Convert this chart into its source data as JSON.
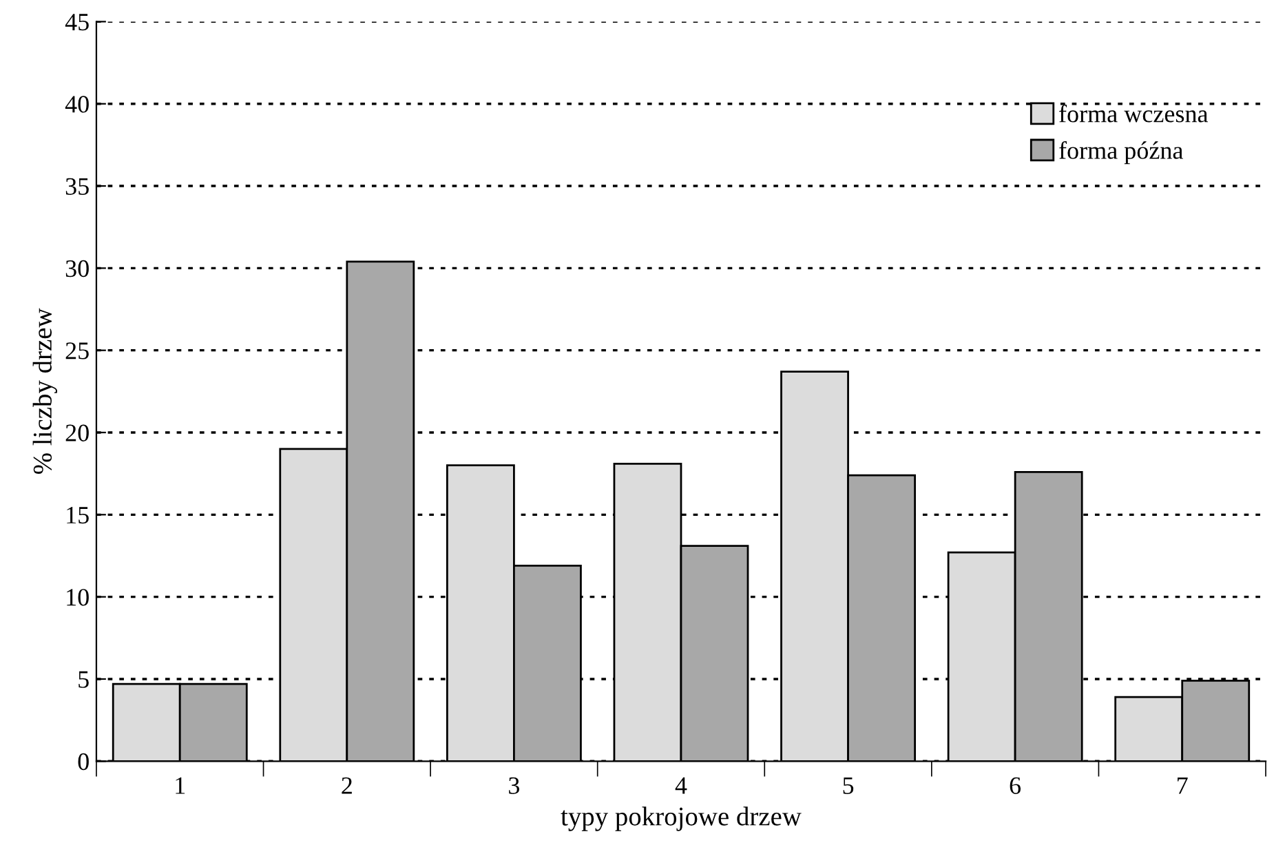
{
  "chart_data": {
    "type": "bar",
    "xlabel": "typy pokrojowe drzew",
    "ylabel": "% liczby drzew",
    "categories": [
      "1",
      "2",
      "3",
      "4",
      "5",
      "6",
      "7"
    ],
    "series": [
      {
        "name": "forma wczesna",
        "color": "#dcdcdc",
        "values": [
          4.7,
          19.0,
          18.0,
          18.1,
          23.7,
          12.7,
          3.9
        ]
      },
      {
        "name": "forma późna",
        "color": "#a8a8a8",
        "values": [
          4.7,
          30.4,
          11.9,
          13.1,
          17.4,
          17.6,
          4.9
        ]
      }
    ],
    "ylim": [
      0,
      45
    ],
    "yticks": [
      0,
      5,
      10,
      15,
      20,
      25,
      30,
      35,
      40,
      45
    ],
    "grid": "y",
    "legend": "top right"
  }
}
